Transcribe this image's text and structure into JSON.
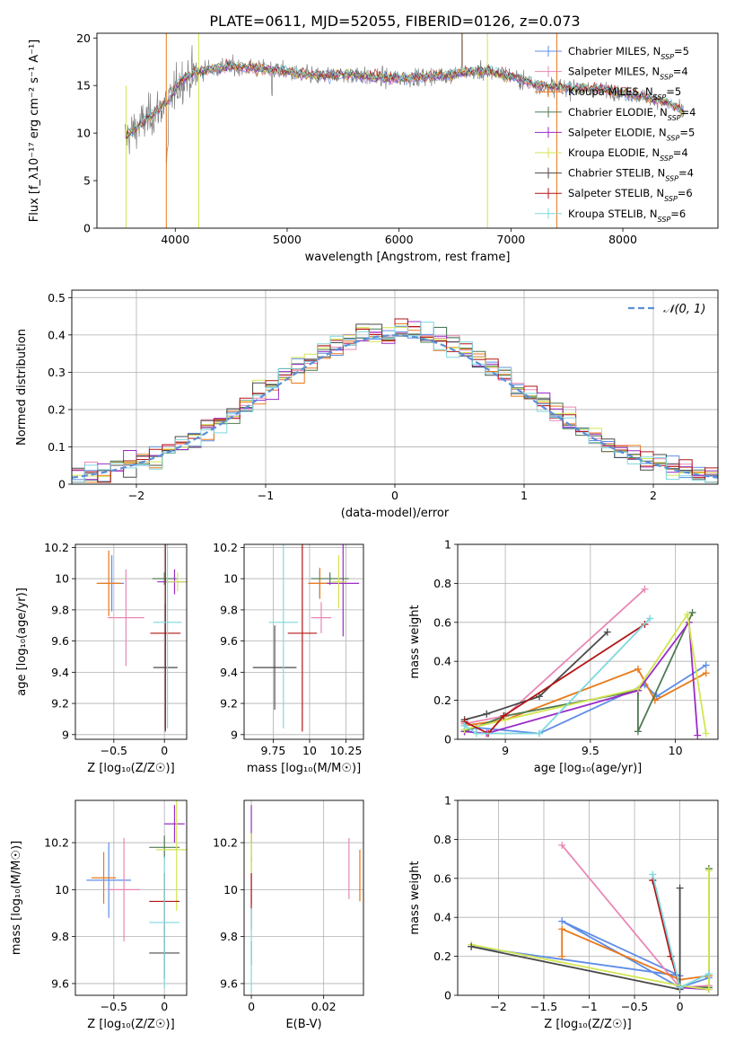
{
  "figure_title": "PLATE=0611, MJD=52055, FIBERID=0126, z=0.073",
  "model_colors": [
    "#5e8de8",
    "#e887b5",
    "#e9791a",
    "#4f7a52",
    "#9a2cc7",
    "#d2e550",
    "#4a4a4a",
    "#b31515",
    "#7fd8de"
  ],
  "models": [
    {
      "name": "Chabrier MILES",
      "nssp": "5"
    },
    {
      "name": "Salpeter MILES",
      "nssp": "4"
    },
    {
      "name": "Kroupa MILES",
      "nssp": "5"
    },
    {
      "name": "Chabrier ELODIE",
      "nssp": "4"
    },
    {
      "name": "Salpeter ELODIE",
      "nssp": "5"
    },
    {
      "name": "Kroupa ELODIE",
      "nssp": "4"
    },
    {
      "name": "Chabrier STELIB",
      "nssp": "4"
    },
    {
      "name": "Salpeter STELIB",
      "nssp": "6"
    },
    {
      "name": "Kroupa STELIB",
      "nssp": "6"
    }
  ],
  "chart_data": [
    {
      "id": "spectrum",
      "type": "line",
      "xlabel": "wavelength [Angstrom, rest frame]",
      "ylabel": "Flux [f_λ10⁻¹⁷ erg cm⁻² s⁻¹ A⁻¹]",
      "xlim": [
        3300,
        8850
      ],
      "ylim": [
        0,
        20.5
      ],
      "xticks": [
        4000,
        5000,
        6000,
        7000,
        8000
      ],
      "yticks": [
        0,
        5,
        10,
        15,
        20
      ],
      "legend_position": "top-right",
      "observed_color": "#7f7f7f",
      "continuum": {
        "x": [
          3550,
          3700,
          3850,
          3950,
          4050,
          4150,
          4300,
          4500,
          4700,
          4900,
          5100,
          5300,
          5500,
          5700,
          5900,
          6100,
          6300,
          6500,
          6600,
          6800,
          7000,
          7200,
          7400,
          7600,
          7800,
          8000,
          8200,
          8400,
          8550
        ],
        "y": [
          9.5,
          11,
          12.5,
          13.5,
          15.5,
          16.2,
          16.8,
          17.0,
          16.8,
          16.6,
          16.2,
          16.0,
          16.2,
          16.0,
          15.8,
          15.8,
          16.0,
          16.2,
          16.4,
          16.5,
          16.0,
          15.2,
          14.8,
          14.8,
          14.6,
          14.2,
          13.8,
          13.2,
          12.2
        ]
      }
    },
    {
      "id": "residuals",
      "type": "histogram",
      "xlabel": "(data-model)/error",
      "ylabel": "Normed distribution",
      "xlim": [
        -2.5,
        2.5
      ],
      "ylim": [
        0,
        0.52
      ],
      "xticks": [
        -2,
        -1,
        0,
        1,
        2
      ],
      "yticks": [
        0,
        0.1,
        0.2,
        0.3,
        0.4,
        0.5
      ],
      "reference_label": "𝒩(0, 1)",
      "reference_color": "#5b8fd9",
      "grid": true,
      "legend_position": "top-right",
      "bin_width": 0.1
    },
    {
      "id": "age_vs_Z",
      "type": "errorbar",
      "xlabel": "Z [log₁₀(Z/Z☉)]",
      "ylabel": "age  [log₁₀(age/yr)]",
      "xlim": [
        -0.88,
        0.22
      ],
      "ylim": [
        8.97,
        10.22
      ],
      "xticks": [
        -0.5,
        0.0
      ],
      "yticks": [
        9.0,
        9.2,
        9.4,
        9.6,
        9.8,
        10.0,
        10.2
      ],
      "points": [
        {
          "x": -0.52,
          "y": 9.97,
          "xerr": 0.12,
          "yerr": 0.18
        },
        {
          "x": -0.38,
          "y": 9.75,
          "xerr": 0.18,
          "yerr": 0.31
        },
        {
          "x": -0.55,
          "y": 9.97,
          "xerr": 0.12,
          "yerr": 0.21
        },
        {
          "x": 0.0,
          "y": 10.0,
          "xerr": 0.12,
          "yerr": 0.04
        },
        {
          "x": 0.1,
          "y": 9.98,
          "xerr": 0.17,
          "yerr": 0.08
        },
        {
          "x": 0.13,
          "y": 9.98,
          "xerr": 0.11,
          "yerr": 0.06
        },
        {
          "x": 0.01,
          "y": 9.43,
          "xerr": 0.12,
          "yerr": 0.41
        },
        {
          "x": 0.01,
          "y": 9.65,
          "xerr": 0.15,
          "yerr": 0.62
        },
        {
          "x": 0.03,
          "y": 9.72,
          "xerr": 0.14,
          "yerr": 0.68
        }
      ]
    },
    {
      "id": "age_vs_mass",
      "type": "errorbar",
      "xlabel": "mass [log₁₀(M/M☉)]",
      "ylabel": "",
      "xlim": [
        9.55,
        10.37
      ],
      "ylim": [
        8.97,
        10.22
      ],
      "xticks": [
        9.75,
        10.0,
        10.25
      ],
      "yticks": [
        9.0,
        9.2,
        9.4,
        9.6,
        9.8,
        10.0,
        10.2
      ],
      "points": [
        {
          "x": 10.07,
          "y": 9.97,
          "xerr": 0.07,
          "yerr": 0.09
        },
        {
          "x": 10.08,
          "y": 9.75,
          "xerr": 0.07,
          "yerr": 0.1
        },
        {
          "x": 10.07,
          "y": 9.97,
          "xerr": 0.08,
          "yerr": 0.1
        },
        {
          "x": 10.14,
          "y": 10.0,
          "xerr": 0.13,
          "yerr": 0.04
        },
        {
          "x": 10.23,
          "y": 9.97,
          "xerr": 0.11,
          "yerr": 0.34
        },
        {
          "x": 10.2,
          "y": 9.98,
          "xerr": 0.05,
          "yerr": 0.17
        },
        {
          "x": 9.76,
          "y": 9.43,
          "xerr": 0.15,
          "yerr": 0.27
        },
        {
          "x": 9.95,
          "y": 9.65,
          "xerr": 0.1,
          "yerr": 0.63
        },
        {
          "x": 9.82,
          "y": 9.72,
          "xerr": 0.1,
          "yerr": 0.68
        }
      ]
    },
    {
      "id": "weight_vs_age",
      "type": "line",
      "xlabel": "age  [log₁₀(age/yr)]",
      "ylabel": "mass weight",
      "xlim": [
        8.72,
        10.25
      ],
      "ylim": [
        0,
        1.0
      ],
      "xticks": [
        9.0,
        9.5,
        10.0
      ],
      "yticks": [
        0.0,
        0.2,
        0.4,
        0.6,
        0.8,
        1.0
      ],
      "series": [
        {
          "x": [
            8.76,
            8.83,
            9.2,
            9.82,
            9.89,
            10.18
          ],
          "y": [
            0.04,
            0.06,
            0.03,
            0.28,
            0.22,
            0.38
          ]
        },
        {
          "x": [
            8.76,
            9.0,
            9.82
          ],
          "y": [
            0.08,
            0.12,
            0.77
          ]
        },
        {
          "x": [
            8.76,
            9.0,
            9.78,
            9.88,
            10.18
          ],
          "y": [
            0.07,
            0.1,
            0.36,
            0.2,
            0.34
          ]
        },
        {
          "x": [
            8.76,
            9.0,
            9.78,
            9.78,
            10.1
          ],
          "y": [
            0.04,
            0.12,
            0.25,
            0.04,
            0.65
          ]
        },
        {
          "x": [
            8.76,
            8.89,
            9.78,
            10.08,
            10.13
          ],
          "y": [
            0.04,
            0.03,
            0.25,
            0.6,
            0.02
          ]
        },
        {
          "x": [
            8.76,
            9.0,
            9.78,
            10.07,
            10.18
          ],
          "y": [
            0.05,
            0.1,
            0.26,
            0.64,
            0.03
          ]
        },
        {
          "x": [
            8.76,
            8.89,
            9.2,
            9.6
          ],
          "y": [
            0.1,
            0.13,
            0.22,
            0.55
          ]
        },
        {
          "x": [
            8.76,
            8.9,
            8.99,
            9.82
          ],
          "y": [
            0.09,
            0.03,
            0.12,
            0.59
          ]
        },
        {
          "x": [
            8.76,
            8.83,
            9.2,
            9.85
          ],
          "y": [
            0.07,
            0.03,
            0.03,
            0.62
          ]
        }
      ]
    },
    {
      "id": "mass_vs_Z",
      "type": "errorbar",
      "xlabel": "Z [log₁₀(Z/Z☉)]",
      "ylabel": "mass [log₁₀(M/M☉)]",
      "xlim": [
        -0.88,
        0.22
      ],
      "ylim": [
        9.55,
        10.38
      ],
      "xticks": [
        -0.5,
        0.0
      ],
      "yticks": [
        9.6,
        9.8,
        10.0,
        10.2
      ],
      "points": [
        {
          "x": -0.55,
          "y": 10.04,
          "xerr": 0.22,
          "yerr": 0.16
        },
        {
          "x": -0.4,
          "y": 10.0,
          "xerr": 0.16,
          "yerr": 0.22
        },
        {
          "x": -0.6,
          "y": 10.05,
          "xerr": 0.12,
          "yerr": 0.11
        },
        {
          "x": 0.0,
          "y": 10.18,
          "xerr": 0.15,
          "yerr": 0.05
        },
        {
          "x": 0.1,
          "y": 10.28,
          "xerr": 0.1,
          "yerr": 0.08
        },
        {
          "x": 0.12,
          "y": 10.17,
          "xerr": 0.2,
          "yerr": 0.26
        },
        {
          "x": 0.0,
          "y": 9.73,
          "xerr": 0.15,
          "yerr": 0.11
        },
        {
          "x": 0.0,
          "y": 9.95,
          "xerr": 0.15,
          "yerr": 0.12
        },
        {
          "x": 0.0,
          "y": 9.86,
          "xerr": 0.15,
          "yerr": 0.28
        }
      ]
    },
    {
      "id": "mass_vs_EBV",
      "type": "errorbar",
      "xlabel": "E(B-V)",
      "ylabel": "",
      "xlim": [
        -0.002,
        0.031
      ],
      "ylim": [
        9.55,
        10.38
      ],
      "xticks": [
        0.0,
        0.02
      ],
      "yticks": [
        9.6,
        9.8,
        10.0,
        10.2
      ],
      "points": [
        {
          "x": 0.0,
          "y": 10.04,
          "xerr": 0,
          "yerr": 0.1
        },
        {
          "x": 0.027,
          "y": 10.09,
          "xerr": 0,
          "yerr": 0.13
        },
        {
          "x": 0.03,
          "y": 10.06,
          "xerr": 0,
          "yerr": 0.11
        },
        {
          "x": 0.0,
          "y": 10.18,
          "xerr": 0,
          "yerr": 0.06
        },
        {
          "x": 0.0,
          "y": 10.28,
          "xerr": 0,
          "yerr": 0.08
        },
        {
          "x": 0.0,
          "y": 10.15,
          "xerr": 0,
          "yerr": 0.09
        },
        {
          "x": 0.0,
          "y": 9.73,
          "xerr": 0,
          "yerr": 0.05
        },
        {
          "x": 0.0,
          "y": 9.95,
          "xerr": 0,
          "yerr": 0.12
        },
        {
          "x": 0.0,
          "y": 9.74,
          "xerr": 0,
          "yerr": 0.18
        }
      ]
    },
    {
      "id": "weight_vs_Z",
      "type": "line",
      "xlabel": "Z [log₁₀(Z/Z☉)]",
      "ylabel": "mass weight",
      "xlim": [
        -2.45,
        0.42
      ],
      "ylim": [
        0,
        1.0
      ],
      "xticks": [
        -2.0,
        -1.5,
        -1.0,
        -0.5,
        0.0
      ],
      "yticks": [
        0.0,
        0.2,
        0.4,
        0.6,
        0.8,
        1.0
      ],
      "series": [
        {
          "x": [
            -2.3,
            0.0,
            -1.3,
            0.0,
            0.32
          ],
          "y": [
            0.25,
            0.1,
            0.38,
            0.04,
            0.09
          ]
        },
        {
          "x": [
            -1.3,
            0.0,
            0.32
          ],
          "y": [
            0.77,
            0.04,
            0.05
          ]
        },
        {
          "x": [
            -1.3,
            -1.3,
            0.0,
            0.32
          ],
          "y": [
            0.2,
            0.34,
            0.08,
            0.1
          ]
        },
        {
          "x": [
            0.0,
            0.32,
            0.32
          ],
          "y": [
            0.04,
            0.04,
            0.65
          ]
        },
        {
          "x": [
            -0.3,
            0.0,
            0.32
          ],
          "y": [
            0.59,
            0.04,
            0.03
          ]
        },
        {
          "x": [
            -2.3,
            0.0,
            0.32,
            0.32
          ],
          "y": [
            0.26,
            0.05,
            0.03,
            0.64
          ]
        },
        {
          "x": [
            -2.3,
            0.0,
            0.0
          ],
          "y": [
            0.25,
            0.03,
            0.55
          ]
        },
        {
          "x": [
            -0.3,
            -0.1,
            0.0
          ],
          "y": [
            0.59,
            0.2,
            0.04
          ]
        },
        {
          "x": [
            -0.3,
            0.0,
            0.32
          ],
          "y": [
            0.62,
            0.04,
            0.11
          ]
        }
      ]
    }
  ]
}
